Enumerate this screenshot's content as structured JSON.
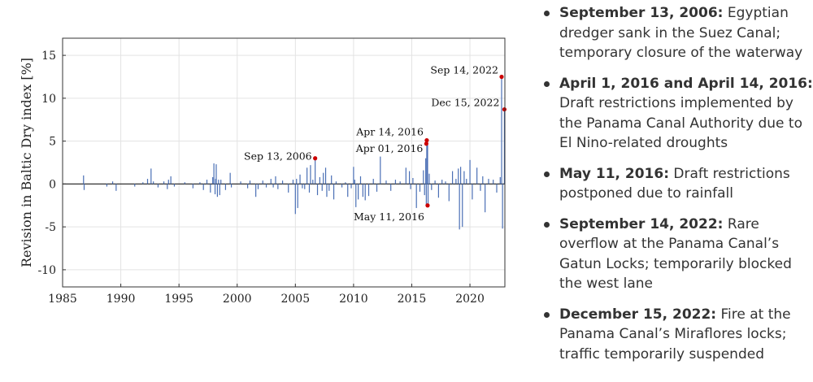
{
  "chart_data": {
    "type": "bar",
    "title": "",
    "xlabel": "",
    "ylabel": "Revision in Baltic Dry index [%]",
    "xlim": [
      1985,
      2023
    ],
    "ylim": [
      -12,
      17
    ],
    "xticks": [
      1985,
      1990,
      1995,
      2000,
      2005,
      2010,
      2015,
      2020
    ],
    "yticks": [
      -10,
      -5,
      0,
      5,
      10,
      15
    ],
    "grid": true,
    "bar_color": "#4a6fb5",
    "marker_color": "#cc0000",
    "series": [
      {
        "x": [
          1986.8,
          1986.85,
          1988.8,
          1989.3,
          1989.6,
          1991.2,
          1991.9,
          1992.3,
          1992.6,
          1992.8,
          1993.2,
          1993.7,
          1994.0,
          1994.1,
          1994.3,
          1994.6,
          1995.5,
          1996.2,
          1996.8,
          1997.1,
          1997.4,
          1997.7,
          1997.9,
          1998.0,
          1998.1,
          1998.15,
          1998.2,
          1998.3,
          1998.4,
          1998.5,
          1998.6,
          1999.0,
          1999.4,
          1999.5,
          2000.3,
          2000.9,
          2001.1,
          2001.6,
          2001.8,
          2002.2,
          2002.5,
          2002.9,
          2003.1,
          2003.3,
          2003.5,
          2003.9,
          2004.4,
          2004.8,
          2005.0,
          2005.1,
          2005.2,
          2005.4,
          2005.6,
          2005.8,
          2006.0,
          2006.2,
          2006.3,
          2006.5,
          2006.7,
          2006.9,
          2007.1,
          2007.3,
          2007.4,
          2007.6,
          2007.7,
          2007.9,
          2008.1,
          2008.3,
          2008.5,
          2009.0,
          2009.3,
          2009.5,
          2009.8,
          2010.0,
          2010.1,
          2010.2,
          2010.4,
          2010.6,
          2010.8,
          2011.0,
          2011.3,
          2011.7,
          2012.0,
          2012.3,
          2012.8,
          2013.2,
          2013.6,
          2014.0,
          2014.5,
          2014.8,
          2014.9,
          2015.1,
          2015.4,
          2015.7,
          2016.0,
          2016.1,
          2016.2,
          2016.25,
          2016.29,
          2016.36,
          2016.4,
          2016.5,
          2016.7,
          2017.0,
          2017.3,
          2017.6,
          2017.9,
          2018.2,
          2018.5,
          2018.8,
          2019.0,
          2019.1,
          2019.2,
          2019.35,
          2019.5,
          2019.7,
          2020.0,
          2020.2,
          2020.6,
          2020.9,
          2021.1,
          2021.3,
          2021.6,
          2022.0,
          2022.3,
          2022.6,
          2022.72,
          2022.8,
          2022.96
        ],
        "y": [
          1.0,
          -0.7,
          -0.3,
          0.3,
          -0.8,
          -0.3,
          0.2,
          0.6,
          1.8,
          0.3,
          -0.4,
          0.3,
          -0.6,
          0.5,
          0.9,
          -0.3,
          0.2,
          -0.5,
          0.2,
          -0.7,
          0.5,
          -1.0,
          0.8,
          2.4,
          -1.2,
          0.6,
          2.3,
          -1.5,
          0.5,
          -1.3,
          0.5,
          -0.7,
          1.3,
          -0.4,
          0.3,
          -0.5,
          0.4,
          -1.5,
          -0.6,
          0.4,
          -0.4,
          0.6,
          -0.4,
          0.9,
          -0.6,
          0.4,
          -1.0,
          0.5,
          -3.5,
          0.6,
          -2.8,
          1.1,
          -0.5,
          -0.6,
          1.9,
          -1.0,
          2.2,
          0.5,
          3.0,
          -1.3,
          0.8,
          -0.8,
          1.3,
          1.9,
          -1.5,
          -0.8,
          1.0,
          -1.8,
          0.3,
          -0.4,
          0.2,
          -1.5,
          -0.5,
          2.0,
          0.5,
          -2.7,
          -1.8,
          0.9,
          -1.5,
          -1.9,
          -1.4,
          0.6,
          -0.9,
          3.2,
          0.4,
          -0.8,
          0.5,
          0.3,
          1.9,
          1.5,
          -0.6,
          0.7,
          -2.8,
          -0.9,
          1.6,
          -1.3,
          3.0,
          -2.4,
          4.7,
          5.1,
          -2.5,
          1.2,
          -0.7,
          0.4,
          -1.6,
          0.5,
          0.3,
          -2.0,
          1.5,
          0.6,
          1.8,
          -5.3,
          2.0,
          -5.0,
          1.5,
          0.6,
          2.8,
          -1.8,
          1.9,
          -0.8,
          0.9,
          -3.3,
          0.6,
          0.5,
          -1.0,
          0.8,
          12.5,
          -5.2,
          8.7
        ]
      }
    ],
    "annotations": [
      {
        "label": "Sep 13, 2006",
        "x": 2006.7,
        "y": 3.0
      },
      {
        "label": "Apr 01, 2016",
        "x": 2016.25,
        "y": 4.7
      },
      {
        "label": "Apr 14, 2016",
        "x": 2016.29,
        "y": 5.1
      },
      {
        "label": "May 11, 2016",
        "x": 2016.36,
        "y": -2.5
      },
      {
        "label": "Sep 14, 2022",
        "x": 2022.72,
        "y": 12.5
      },
      {
        "label": "Dec 15, 2022",
        "x": 2022.96,
        "y": 8.7
      }
    ]
  },
  "events": [
    {
      "date": "September 13, 2006:",
      "text": "Egyptian dredger sank in the Suez Canal; temporary closure of the waterway"
    },
    {
      "date": "April 1, 2016 and April 14, 2016:",
      "text": "Draft restrictions implemented by the Panama Canal Authority due to El Nino-related droughts"
    },
    {
      "date": "May 11, 2016:",
      "text": "Draft restrictions postponed due to rainfall"
    },
    {
      "date": "September 14, 2022:",
      "text": "Rare overflow at the Panama Canal’s Gatun Locks; temporarily blocked the west lane"
    },
    {
      "date": "December 15, 2022:",
      "text": "Fire at the Panama Canal’s Miraflores locks; traffic temporarily suspended"
    }
  ]
}
